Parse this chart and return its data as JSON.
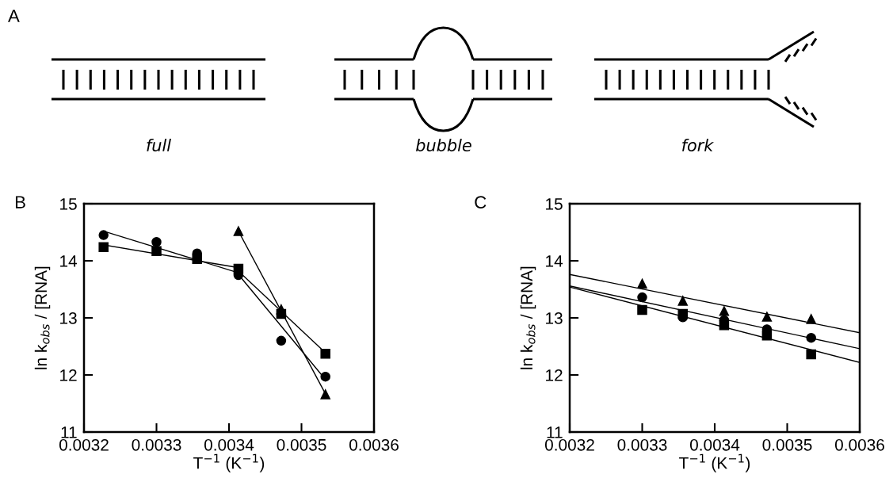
{
  "chart_data": [
    {
      "type": "other",
      "annotations": [
        "A",
        "full",
        "bubble",
        "fork"
      ]
    },
    {
      "type": "scatter",
      "annotations": [
        "B"
      ],
      "xlabel": "T$^{−1}$ (K$^{−1}$)",
      "ylabel": "ln k$_{obs}$ / [RNA]",
      "x": [
        0.003227,
        0.0033,
        0.003356,
        0.003413,
        0.003472,
        0.003533
      ],
      "series": [
        {
          "marker": "circle",
          "color": "#000000",
          "values": [
            14.45,
            14.33,
            14.13,
            13.75,
            12.6,
            11.97
          ]
        },
        {
          "marker": "square",
          "color": "#000000",
          "values": [
            14.24,
            14.17,
            14.03,
            13.86,
            13.07,
            12.37
          ]
        },
        {
          "marker": "triangle",
          "color": "#000000",
          "values": [
            null,
            null,
            null,
            14.52,
            13.15,
            11.66
          ]
        },
        {
          "type": "line",
          "marker": "none",
          "color": "#000000",
          "x": [
            0.003227,
            0.003413
          ],
          "values": [
            14.52,
            13.79
          ]
        },
        {
          "type": "line",
          "marker": "none",
          "color": "#000000",
          "x": [
            0.003227,
            0.003413
          ],
          "values": [
            14.28,
            13.88
          ]
        },
        {
          "type": "line",
          "marker": "none",
          "color": "#000000",
          "x": [
            0.003413,
            0.003533
          ],
          "values": [
            13.76,
            11.92
          ]
        },
        {
          "type": "line",
          "marker": "none",
          "color": "#000000",
          "x": [
            0.003413,
            0.003533
          ],
          "values": [
            13.82,
            12.39
          ]
        },
        {
          "type": "line",
          "marker": "none",
          "color": "#000000",
          "x": [
            0.003413,
            0.003533
          ],
          "values": [
            14.52,
            11.67
          ]
        }
      ],
      "xlim": [
        0.0032,
        0.0036
      ],
      "xticks": [
        0.0032,
        0.0033,
        0.0034,
        0.0035,
        0.0036
      ],
      "ylim": [
        11,
        15
      ],
      "yticks": [
        11,
        12,
        13,
        14,
        15
      ],
      "grid": false,
      "legend": false
    },
    {
      "type": "scatter",
      "annotations": [
        "C"
      ],
      "xlabel": "T$^{−1}$ (K$^{−1}$)",
      "ylabel": "ln k$_{obs}$ / [RNA]",
      "x": [
        0.0033,
        0.003356,
        0.003413,
        0.003472,
        0.003533
      ],
      "series": [
        {
          "marker": "triangle",
          "color": "#000000",
          "values": [
            13.6,
            13.3,
            13.12,
            13.02,
            12.98
          ]
        },
        {
          "marker": "circle",
          "color": "#000000",
          "values": [
            13.36,
            13.01,
            12.96,
            12.8,
            12.65
          ]
        },
        {
          "marker": "square",
          "color": "#000000",
          "values": [
            13.14,
            13.07,
            12.87,
            12.69,
            12.36
          ]
        },
        {
          "type": "line",
          "marker": "none",
          "color": "#000000",
          "x": [
            0.0032,
            0.0036
          ],
          "values": [
            13.76,
            12.74
          ]
        },
        {
          "type": "line",
          "marker": "none",
          "color": "#000000",
          "x": [
            0.0032,
            0.0036
          ],
          "values": [
            13.56,
            12.46
          ]
        },
        {
          "type": "line",
          "marker": "none",
          "color": "#000000",
          "x": [
            0.0032,
            0.0036
          ],
          "values": [
            13.54,
            12.22
          ]
        }
      ],
      "xlim": [
        0.0032,
        0.0036
      ],
      "xticks": [
        0.0032,
        0.0033,
        0.0034,
        0.0035,
        0.0036
      ],
      "ylim": [
        11,
        15
      ],
      "yticks": [
        11,
        12,
        13,
        14,
        15
      ],
      "grid": false,
      "legend": false
    }
  ]
}
